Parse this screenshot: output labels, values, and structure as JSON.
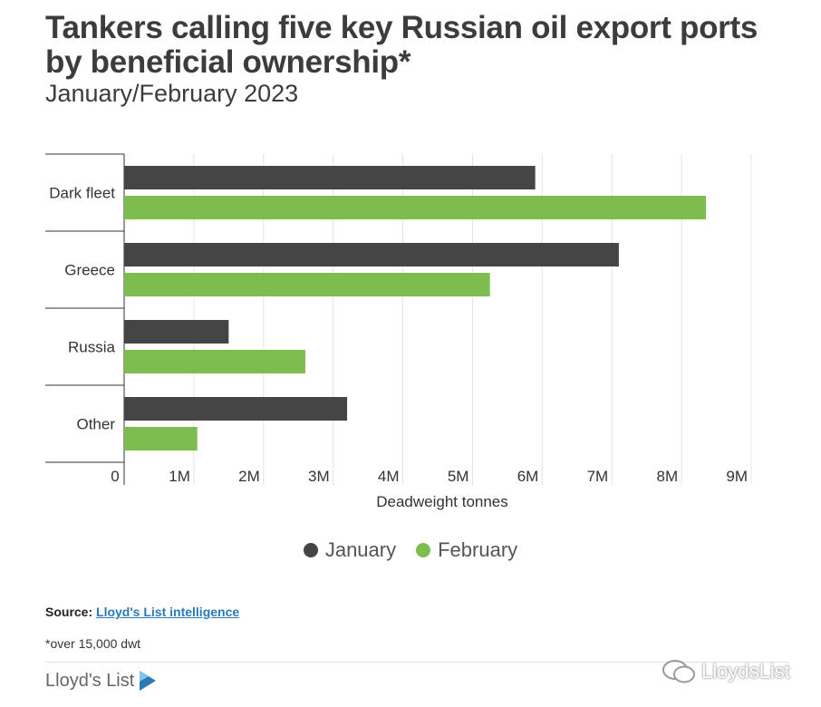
{
  "header": {
    "title": "Tankers calling five key Russian oil export ports by beneficial ownership*",
    "subtitle": "January/February 2023"
  },
  "chart_data": {
    "type": "bar",
    "orientation": "horizontal",
    "categories": [
      "Dark fleet",
      "Greece",
      "Russia",
      "Other"
    ],
    "series": [
      {
        "name": "January",
        "color": "#454545",
        "values": [
          5.9,
          7.1,
          1.5,
          3.2
        ]
      },
      {
        "name": "February",
        "color": "#7dbd4f",
        "values": [
          8.35,
          5.25,
          2.6,
          1.05
        ]
      }
    ],
    "xlabel": "Deadweight tonnes",
    "ylabel": "",
    "xlim": [
      0,
      9
    ],
    "xticks": [
      "0",
      "1M",
      "2M",
      "3M",
      "4M",
      "5M",
      "6M",
      "7M",
      "8M",
      "9M"
    ],
    "grid": true,
    "legend": "bottom-center"
  },
  "footer": {
    "source_label": "Source:",
    "source_link": "Lloyd's List intelligence",
    "footnote": "*over 15,000 dwt",
    "brand": "Lloyd's List",
    "watermark": "LloydsList"
  }
}
